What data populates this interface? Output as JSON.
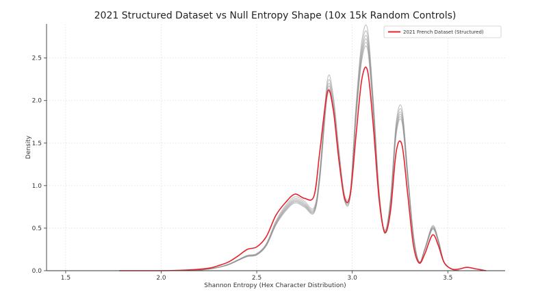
{
  "chart_data": {
    "type": "line",
    "title": "2021 Structured Dataset vs Null Entropy Shape (10x 15k Random Controls)",
    "xlabel": "Shannon Entropy (Hex Character Distribution)",
    "ylabel": "Density",
    "xlim": [
      1.4,
      3.8
    ],
    "ylim": [
      0.0,
      2.9
    ],
    "xticks": [
      {
        "value": 1.5,
        "label": "1.5"
      },
      {
        "value": 2.0,
        "label": "2.0"
      },
      {
        "value": 2.5,
        "label": "2.5"
      },
      {
        "value": 3.0,
        "label": "3.0"
      },
      {
        "value": 3.5,
        "label": "3.5"
      }
    ],
    "yticks": [
      {
        "value": 0.0,
        "label": "0.0"
      },
      {
        "value": 0.5,
        "label": "0.5"
      },
      {
        "value": 1.0,
        "label": "1.0"
      },
      {
        "value": 1.5,
        "label": "1.5"
      },
      {
        "value": 2.0,
        "label": "2.0"
      },
      {
        "value": 2.5,
        "label": "2.5"
      }
    ],
    "grid": true,
    "legend_position": "top-right",
    "colors": {
      "structured": "#e8202a",
      "control": "#8c8c8c"
    },
    "series": [
      {
        "name": "2021 French Dataset (Structured)",
        "role": "structured",
        "x": [
          1.78,
          2.0,
          2.15,
          2.25,
          2.3,
          2.35,
          2.4,
          2.45,
          2.5,
          2.55,
          2.6,
          2.65,
          2.7,
          2.75,
          2.8,
          2.83,
          2.87,
          2.9,
          2.93,
          2.96,
          2.99,
          3.02,
          3.05,
          3.08,
          3.11,
          3.14,
          3.17,
          3.2,
          3.23,
          3.26,
          3.29,
          3.32,
          3.35,
          3.38,
          3.42,
          3.45,
          3.48,
          3.52,
          3.56,
          3.6,
          3.65,
          3.7
        ],
        "y": [
          0.0,
          0.0,
          0.01,
          0.03,
          0.06,
          0.1,
          0.17,
          0.25,
          0.28,
          0.4,
          0.65,
          0.8,
          0.9,
          0.85,
          0.88,
          1.4,
          2.1,
          1.9,
          1.3,
          0.85,
          0.9,
          1.6,
          2.25,
          2.35,
          1.7,
          0.85,
          0.45,
          0.7,
          1.4,
          1.48,
          0.9,
          0.3,
          0.09,
          0.2,
          0.42,
          0.3,
          0.1,
          0.02,
          0.02,
          0.04,
          0.02,
          0.0
        ]
      },
      {
        "name": "",
        "role": "control",
        "x": [
          1.78,
          2.0,
          2.15,
          2.25,
          2.3,
          2.35,
          2.4,
          2.45,
          2.5,
          2.55,
          2.6,
          2.65,
          2.7,
          2.75,
          2.8,
          2.83,
          2.87,
          2.9,
          2.93,
          2.96,
          2.99,
          3.02,
          3.05,
          3.08,
          3.11,
          3.14,
          3.17,
          3.2,
          3.23,
          3.26,
          3.29,
          3.32,
          3.35,
          3.38,
          3.42,
          3.45,
          3.48,
          3.52,
          3.56,
          3.6,
          3.65,
          3.7
        ],
        "y": [
          0.0,
          0.0,
          0.0,
          0.02,
          0.04,
          0.07,
          0.12,
          0.17,
          0.19,
          0.3,
          0.55,
          0.72,
          0.82,
          0.77,
          0.7,
          1.1,
          2.12,
          1.95,
          1.35,
          0.84,
          0.9,
          1.85,
          2.55,
          2.68,
          1.9,
          0.9,
          0.45,
          0.8,
          1.65,
          1.8,
          1.1,
          0.4,
          0.1,
          0.25,
          0.5,
          0.35,
          0.1,
          0.02,
          0.0,
          0.0,
          0.0,
          0.0
        ]
      }
    ]
  }
}
